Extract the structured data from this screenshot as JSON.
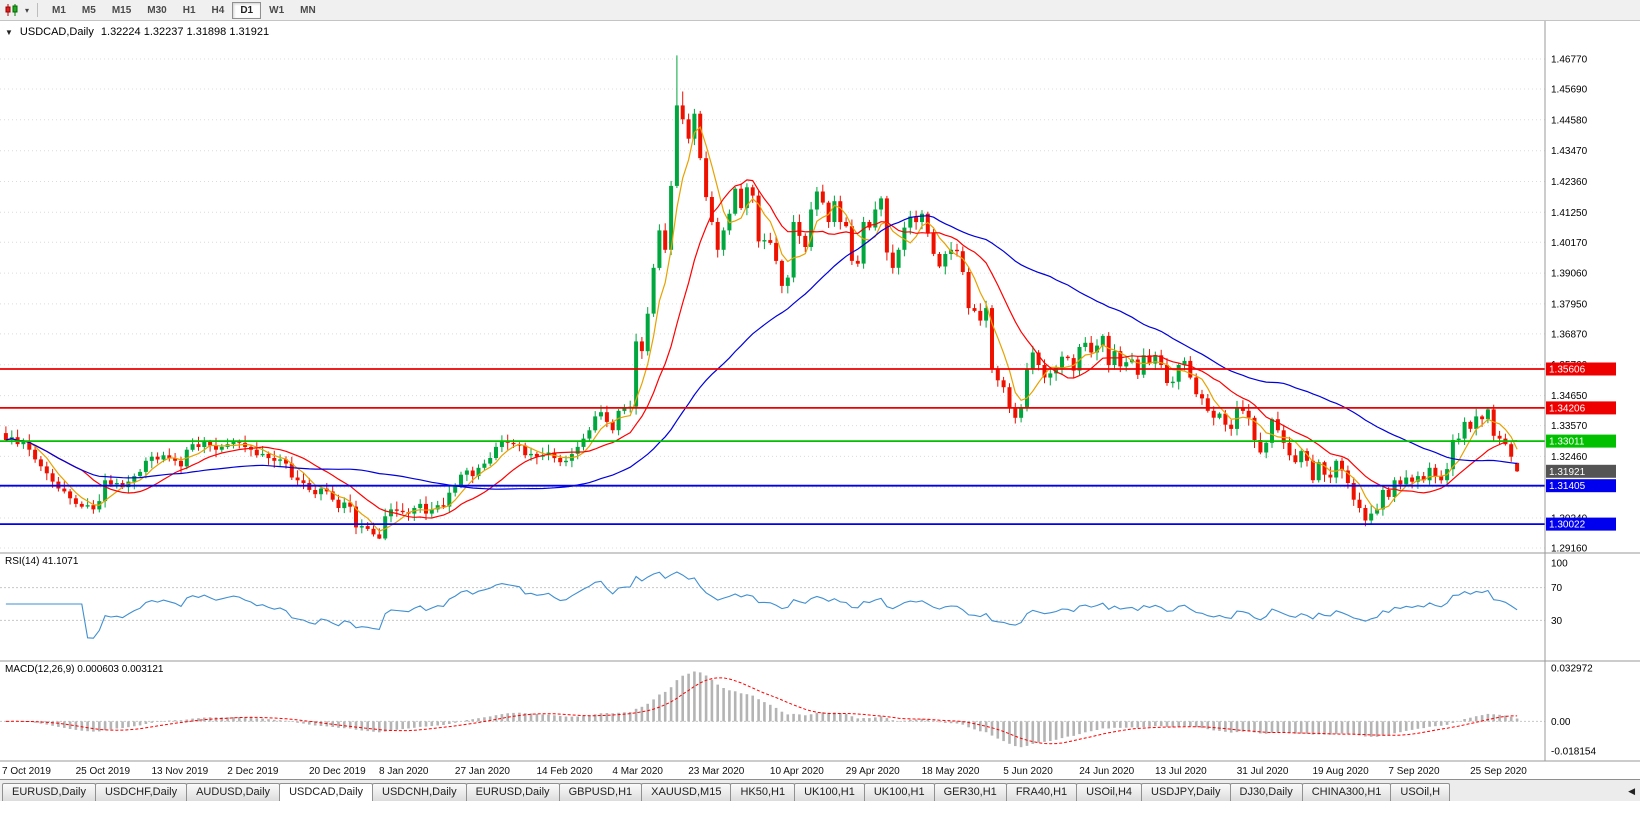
{
  "icons": {
    "collapse": "▼",
    "caret": "▾",
    "tab_scroll_left": "◀"
  },
  "toolbar": {
    "timeframes": [
      {
        "label": "M1",
        "active": false
      },
      {
        "label": "M5",
        "active": false
      },
      {
        "label": "M15",
        "active": false
      },
      {
        "label": "M30",
        "active": false
      },
      {
        "label": "H1",
        "active": false
      },
      {
        "label": "H4",
        "active": false
      },
      {
        "label": "D1",
        "active": true
      },
      {
        "label": "W1",
        "active": false
      },
      {
        "label": "MN",
        "active": false
      }
    ]
  },
  "chart": {
    "symbol_period": "USDCAD,Daily",
    "ohlc": "1.32224 1.32237 1.31898 1.31921"
  },
  "chart_data": {
    "type": "candlestick",
    "symbol": "USDCAD",
    "period": "Daily",
    "first_open": 1.333,
    "closes": [
      1.3305,
      1.3315,
      1.329,
      1.33,
      1.327,
      1.3235,
      1.321,
      1.3185,
      1.3155,
      1.313,
      1.312,
      1.3095,
      1.3075,
      1.3065,
      1.307,
      1.3055,
      1.3085,
      1.316,
      1.3145,
      1.315,
      1.3135,
      1.3155,
      1.3175,
      1.319,
      1.323,
      1.3245,
      1.3235,
      1.325,
      1.324,
      1.323,
      1.321,
      1.327,
      1.329,
      1.328,
      1.33,
      1.3285,
      1.327,
      1.328,
      1.329,
      1.33,
      1.3295,
      1.328,
      1.327,
      1.325,
      1.3255,
      1.324,
      1.323,
      1.3235,
      1.322,
      1.317,
      1.316,
      1.315,
      1.3125,
      1.311,
      1.313,
      1.312,
      1.309,
      1.306,
      1.308,
      1.3065,
      1.299,
      1.2995,
      1.2985,
      1.2965,
      1.295,
      1.303,
      1.3055,
      1.305,
      1.3045,
      1.304,
      1.306,
      1.3075,
      1.304,
      1.3055,
      1.307,
      1.3065,
      1.3115,
      1.314,
      1.318,
      1.3195,
      1.3175,
      1.3205,
      1.322,
      1.324,
      1.328,
      1.33,
      1.3295,
      1.329,
      1.3285,
      1.325,
      1.3255,
      1.3245,
      1.325,
      1.326,
      1.324,
      1.3225,
      1.323,
      1.3255,
      1.328,
      1.331,
      1.334,
      1.339,
      1.3405,
      1.337,
      1.334,
      1.341,
      1.342,
      1.3425,
      1.366,
      1.3625,
      1.376,
      1.3925,
      1.406,
      1.399,
      1.422,
      1.451,
      1.446,
      1.439,
      1.448,
      1.432,
      1.418,
      1.409,
      1.399,
      1.406,
      1.412,
      1.421,
      1.414,
      1.4215,
      1.4185,
      1.402,
      1.4025,
      1.4015,
      1.395,
      1.386,
      1.389,
      1.409,
      1.404,
      1.4,
      1.4135,
      1.42,
      1.416,
      1.409,
      1.4165,
      1.409,
      1.4075,
      1.395,
      1.394,
      1.409,
      1.407,
      1.4135,
      1.4175,
      1.398,
      1.3925,
      1.399,
      1.407,
      1.411,
      1.409,
      1.412,
      1.405,
      1.3975,
      1.393,
      1.3975,
      1.399,
      1.3985,
      1.391,
      1.378,
      1.377,
      1.3735,
      1.378,
      1.356,
      1.352,
      1.3495,
      1.342,
      1.3385,
      1.342,
      1.356,
      1.362,
      1.3575,
      1.353,
      1.3545,
      1.3565,
      1.3605,
      1.36,
      1.3555,
      1.364,
      1.3655,
      1.362,
      1.3645,
      1.368,
      1.3575,
      1.3625,
      1.357,
      1.3585,
      1.3595,
      1.354,
      1.361,
      1.358,
      1.361,
      1.3575,
      1.351,
      1.3515,
      1.3575,
      1.359,
      1.353,
      1.347,
      1.3455,
      1.341,
      1.3385,
      1.34,
      1.336,
      1.3345,
      1.342,
      1.341,
      1.3385,
      1.3305,
      1.326,
      1.3295,
      1.338,
      1.334,
      1.3295,
      1.325,
      1.3225,
      1.3265,
      1.323,
      1.316,
      1.3225,
      1.318,
      1.317,
      1.323,
      1.3195,
      1.315,
      1.309,
      1.306,
      1.3015,
      1.304,
      1.3055,
      1.3125,
      1.31,
      1.316,
      1.3145,
      1.317,
      1.3155,
      1.3175,
      1.316,
      1.3205,
      1.3175,
      1.316,
      1.32,
      1.3305,
      1.331,
      1.337,
      1.3345,
      1.339,
      1.338,
      1.3415,
      1.332,
      1.331,
      1.329,
      1.3245,
      1.3192
    ],
    "wick_base": 0.0005,
    "wick_var": 0.0024,
    "overrides": {
      "64": {
        "l": 1.2948
      },
      "115": {
        "h": 1.469
      },
      "116": {
        "h": 1.456
      },
      "233": {
        "l": 1.2994
      },
      "254": {
        "h": 1.3422
      },
      "259": {
        "o": 1.32224,
        "h": 1.32237,
        "l": 1.31898,
        "c": 1.31921
      }
    },
    "bull_color": "#00a63e",
    "bear_color": "#ee1100",
    "moving_averages": [
      {
        "period": 5,
        "color": "#e8a200"
      },
      {
        "period": 14,
        "color": "#ff0000"
      },
      {
        "period": 45,
        "color": "#0000dd"
      }
    ],
    "levels": [
      {
        "value": 1.35606,
        "color": "#ee0000"
      },
      {
        "value": 1.34206,
        "color": "#ee0000"
      },
      {
        "value": 1.33011,
        "color": "#00c000"
      },
      {
        "value": 1.31405,
        "color": "#0000ee"
      },
      {
        "value": 1.30022,
        "color": "#0000ee"
      }
    ],
    "y_axis": {
      "ticks": [
        1.4677,
        1.4569,
        1.4458,
        1.4347,
        1.4236,
        1.4125,
        1.4017,
        1.3906,
        1.3795,
        1.3687,
        1.3576,
        1.3465,
        1.3357,
        1.3246,
        1.3135,
        1.3024,
        1.2916
      ],
      "current_price": 1.31921,
      "current_tag_color": "#545454"
    },
    "x_axis": {
      "dates": [
        {
          "i": 0,
          "label": "7 Oct 2019"
        },
        {
          "i": 14,
          "label": "25 Oct 2019"
        },
        {
          "i": 27,
          "label": "13 Nov 2019"
        },
        {
          "i": 40,
          "label": "2 Dec 2019"
        },
        {
          "i": 54,
          "label": "20 Dec 2019"
        },
        {
          "i": 66,
          "label": "8 Jan 2020"
        },
        {
          "i": 79,
          "label": "27 Jan 2020"
        },
        {
          "i": 93,
          "label": "14 Feb 2020"
        },
        {
          "i": 106,
          "label": "4 Mar 2020"
        },
        {
          "i": 119,
          "label": "23 Mar 2020"
        },
        {
          "i": 133,
          "label": "10 Apr 2020"
        },
        {
          "i": 146,
          "label": "29 Apr 2020"
        },
        {
          "i": 159,
          "label": "18 May 2020"
        },
        {
          "i": 173,
          "label": "5 Jun 2020"
        },
        {
          "i": 186,
          "label": "24 Jun 2020"
        },
        {
          "i": 199,
          "label": "13 Jul 2020"
        },
        {
          "i": 213,
          "label": "31 Jul 2020"
        },
        {
          "i": 226,
          "label": "19 Aug 2020"
        },
        {
          "i": 239,
          "label": "7 Sep 2020"
        },
        {
          "i": 253,
          "label": "25 Sep 2020"
        }
      ]
    },
    "rsi": {
      "period": 14,
      "label": "RSI(14) 41.1071",
      "color": "#3f8fd2",
      "levels": [
        100,
        70,
        30
      ]
    },
    "macd": {
      "label": "MACD(12,26,9) 0.000603 0.003121",
      "hist_color": "#b4b4b4",
      "signal_color": "#ff0000",
      "ticks": [
        {
          "value": 0.032972,
          "label": "0.032972"
        },
        {
          "value": 0,
          "label": "0.00"
        },
        {
          "value": -0.018154,
          "label": "-0.018154"
        }
      ]
    }
  },
  "tabs": {
    "items": [
      "EURUSD,Daily",
      "USDCHF,Daily",
      "AUDUSD,Daily",
      "USDCAD,Daily",
      "USDCNH,Daily",
      "EURUSD,Daily",
      "GBPUSD,H1",
      "XAUUSD,M15",
      "HK50,H1",
      "UK100,H1",
      "UK100,H1",
      "GER30,H1",
      "FRA40,H1",
      "USOil,H4",
      "USDJPY,Daily",
      "DJ30,Daily",
      "CHINA300,H1",
      "USOil,H"
    ],
    "active_index": 3
  }
}
